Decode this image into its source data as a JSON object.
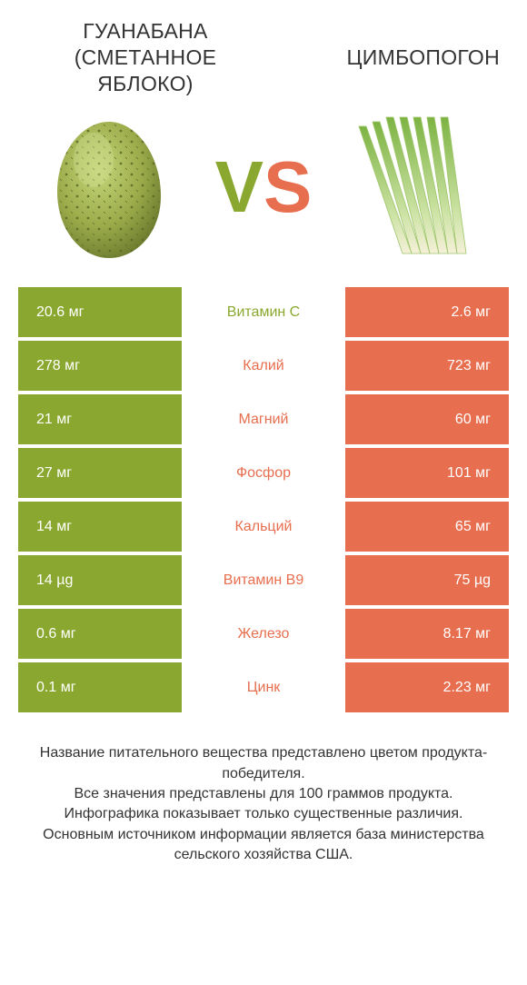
{
  "colors": {
    "left": "#8aa82f",
    "right": "#e76e4e",
    "text": "#333333"
  },
  "header": {
    "left_title": "ГУАНАБАНА (СМЕТАННОЕ ЯБЛОКО)",
    "right_title": "ЦИМБОПОГОН",
    "vs_v": "V",
    "vs_s": "S"
  },
  "rows": [
    {
      "left": "20.6 мг",
      "mid": "Витамин C",
      "right": "2.6 мг",
      "winner": "left"
    },
    {
      "left": "278 мг",
      "mid": "Калий",
      "right": "723 мг",
      "winner": "right"
    },
    {
      "left": "21 мг",
      "mid": "Магний",
      "right": "60 мг",
      "winner": "right"
    },
    {
      "left": "27 мг",
      "mid": "Фосфор",
      "right": "101 мг",
      "winner": "right"
    },
    {
      "left": "14 мг",
      "mid": "Кальций",
      "right": "65 мг",
      "winner": "right"
    },
    {
      "left": "14 µg",
      "mid": "Витамин B9",
      "right": "75 µg",
      "winner": "right"
    },
    {
      "left": "0.6 мг",
      "mid": "Железо",
      "right": "8.17 мг",
      "winner": "right"
    },
    {
      "left": "0.1 мг",
      "mid": "Цинк",
      "right": "2.23 мг",
      "winner": "right"
    }
  ],
  "footer": {
    "line1": "Название питательного вещества представлено цветом продукта-победителя.",
    "line2": "Все значения представлены для 100 граммов продукта.",
    "line3": "Инфографика показывает только существенные различия.",
    "line4": "Основным источником информации является база министерства сельского хозяйства США."
  }
}
